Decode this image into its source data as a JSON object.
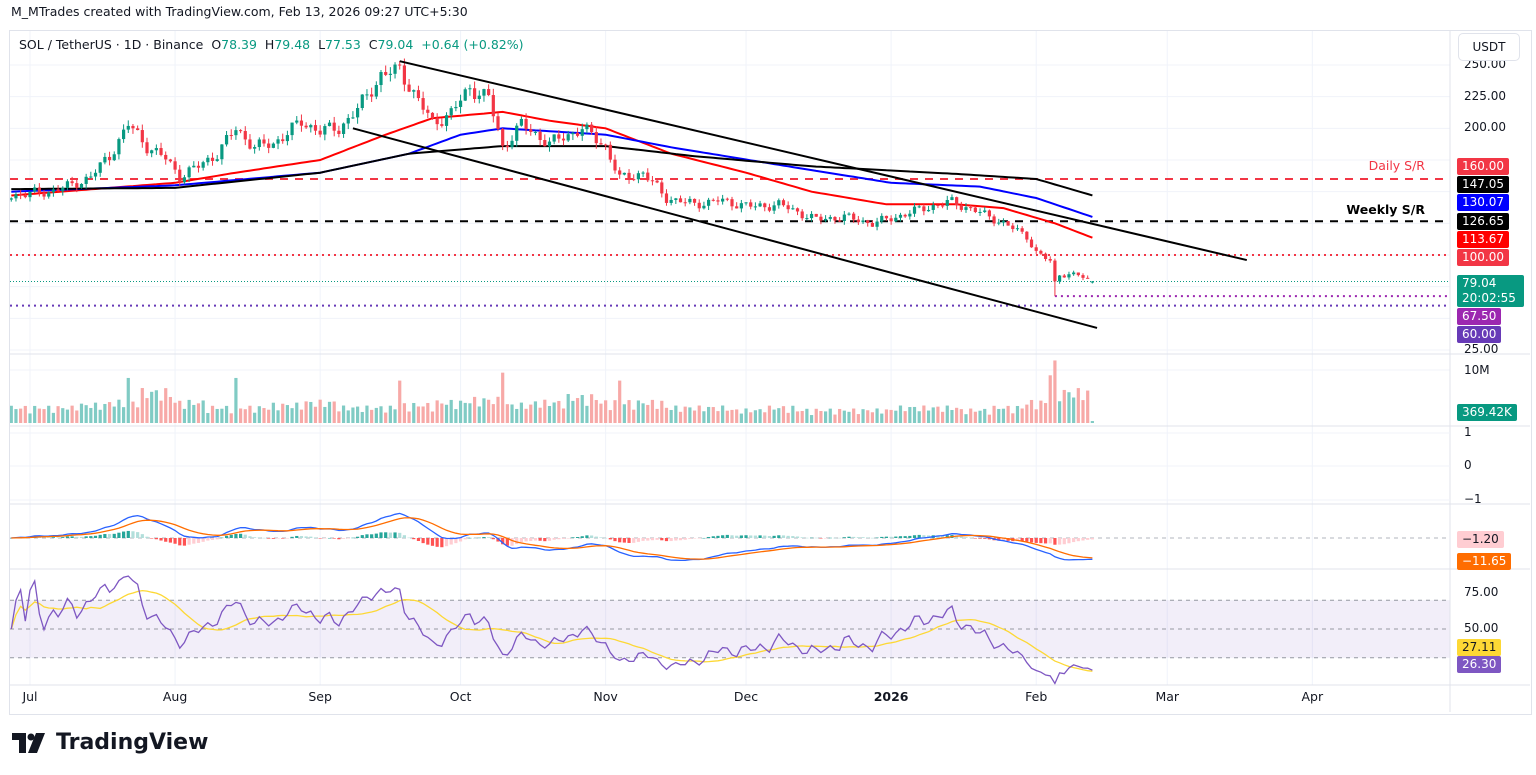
{
  "header": {
    "attribution": "M_MTrades created with TradingView.com, Feb 13, 2026 09:27 UTC+5:30"
  },
  "legend": {
    "symbol": "SOL / TetherUS · 1D · Binance",
    "o_label": "O",
    "open": "78.39",
    "h_label": "H",
    "high": "79.48",
    "l_label": "L",
    "low": "77.53",
    "c_label": "C",
    "close": "79.04",
    "change": "+0.64 (+0.82%)"
  },
  "currency_button": "USDT",
  "logo_text": "TradingView",
  "chart_data": {
    "type": "candlestick",
    "symbol": "SOL/USDT",
    "interval": "1D",
    "y_axis": {
      "ticks": [
        "250.00",
        "225.00",
        "200.00",
        "25.00"
      ],
      "range": [
        25,
        250
      ]
    },
    "x_axis": {
      "ticks": [
        {
          "label": "Jul",
          "date": "2025-07-01"
        },
        {
          "label": "Aug",
          "date": "2025-08-01"
        },
        {
          "label": "Sep",
          "date": "2025-09-01"
        },
        {
          "label": "Oct",
          "date": "2025-10-01"
        },
        {
          "label": "Nov",
          "date": "2025-11-01"
        },
        {
          "label": "Dec",
          "date": "2025-12-01"
        },
        {
          "label": "2026",
          "date": "2026-01-01",
          "bold": true
        },
        {
          "label": "Feb",
          "date": "2026-02-01"
        },
        {
          "label": "Mar",
          "date": "2026-03-01"
        },
        {
          "label": "Apr",
          "date": "2026-04-01"
        }
      ]
    },
    "approx_closes": [
      [
        "2025-06-27",
        147
      ],
      [
        "2025-07-05",
        150
      ],
      [
        "2025-07-10",
        155
      ],
      [
        "2025-07-14",
        162
      ],
      [
        "2025-07-18",
        178
      ],
      [
        "2025-07-22",
        203
      ],
      [
        "2025-07-26",
        186
      ],
      [
        "2025-07-30",
        176
      ],
      [
        "2025-08-02",
        162
      ],
      [
        "2025-08-06",
        170
      ],
      [
        "2025-08-10",
        180
      ],
      [
        "2025-08-14",
        200
      ],
      [
        "2025-08-18",
        185
      ],
      [
        "2025-08-22",
        188
      ],
      [
        "2025-08-28",
        205
      ],
      [
        "2025-09-01",
        198
      ],
      [
        "2025-09-05",
        200
      ],
      [
        "2025-09-09",
        215
      ],
      [
        "2025-09-14",
        242
      ],
      [
        "2025-09-18",
        246
      ],
      [
        "2025-09-22",
        222
      ],
      [
        "2025-09-25",
        204
      ],
      [
        "2025-09-29",
        212
      ],
      [
        "2025-10-03",
        232
      ],
      [
        "2025-10-07",
        224
      ],
      [
        "2025-10-10",
        185
      ],
      [
        "2025-10-14",
        203
      ],
      [
        "2025-10-20",
        188
      ],
      [
        "2025-10-27",
        200
      ],
      [
        "2025-11-01",
        186
      ],
      [
        "2025-11-04",
        160
      ],
      [
        "2025-11-09",
        165
      ],
      [
        "2025-11-14",
        145
      ],
      [
        "2025-11-20",
        140
      ],
      [
        "2025-11-25",
        143
      ],
      [
        "2025-12-03",
        138
      ],
      [
        "2025-12-08",
        140
      ],
      [
        "2025-12-16",
        128
      ],
      [
        "2025-12-22",
        130
      ],
      [
        "2025-12-28",
        125
      ],
      [
        "2026-01-02",
        130
      ],
      [
        "2026-01-08",
        137
      ],
      [
        "2026-01-14",
        142
      ],
      [
        "2026-01-19",
        135
      ],
      [
        "2026-01-24",
        127
      ],
      [
        "2026-01-30",
        115
      ],
      [
        "2026-02-01",
        102
      ],
      [
        "2026-02-04",
        95
      ],
      [
        "2026-02-05",
        78
      ],
      [
        "2026-02-06",
        85
      ],
      [
        "2026-02-10",
        84
      ],
      [
        "2026-02-13",
        79.04
      ]
    ],
    "last_candle": {
      "date": "2026-02-13",
      "open": 78.39,
      "high": 79.48,
      "low": 77.53,
      "close": 79.04
    },
    "swing_low": {
      "date": "2026-02-05",
      "low": 67.5
    },
    "moving_averages": [
      {
        "color": "#ff0000",
        "last": "113.67",
        "points": [
          [
            "2025-06-27",
            147
          ],
          [
            "2025-08-01",
            157
          ],
          [
            "2025-08-14",
            165
          ],
          [
            "2025-09-01",
            175
          ],
          [
            "2025-09-15",
            195
          ],
          [
            "2025-09-25",
            208
          ],
          [
            "2025-10-10",
            213
          ],
          [
            "2025-10-20",
            206
          ],
          [
            "2025-11-01",
            200
          ],
          [
            "2025-11-15",
            180
          ],
          [
            "2025-12-01",
            165
          ],
          [
            "2025-12-15",
            150
          ],
          [
            "2025-12-31",
            140
          ],
          [
            "2026-01-15",
            140
          ],
          [
            "2026-01-25",
            137
          ],
          [
            "2026-02-05",
            125
          ],
          [
            "2026-02-13",
            113.67
          ]
        ]
      },
      {
        "color": "#0000ff",
        "last": "130.07",
        "points": [
          [
            "2025-06-27",
            150
          ],
          [
            "2025-08-01",
            155
          ],
          [
            "2025-09-01",
            165
          ],
          [
            "2025-09-20",
            180
          ],
          [
            "2025-10-01",
            195
          ],
          [
            "2025-10-10",
            200
          ],
          [
            "2025-11-01",
            195
          ],
          [
            "2025-11-15",
            185
          ],
          [
            "2025-12-15",
            167
          ],
          [
            "2026-01-01",
            157
          ],
          [
            "2026-01-20",
            154
          ],
          [
            "2026-02-01",
            145
          ],
          [
            "2026-02-13",
            130.07
          ]
        ]
      },
      {
        "color": "#000000",
        "last": "147.05",
        "points": [
          [
            "2025-06-27",
            152
          ],
          [
            "2025-08-01",
            153
          ],
          [
            "2025-09-01",
            165
          ],
          [
            "2025-09-20",
            180
          ],
          [
            "2025-10-10",
            186
          ],
          [
            "2025-11-01",
            186
          ],
          [
            "2025-11-20",
            178
          ],
          [
            "2025-12-15",
            170
          ],
          [
            "2026-01-15",
            164
          ],
          [
            "2026-02-01",
            160
          ],
          [
            "2026-02-13",
            147.05
          ]
        ]
      }
    ],
    "trendlines": [
      {
        "from": [
          "2025-09-18",
          253
        ],
        "to": [
          "2026-03-18",
          96
        ]
      },
      {
        "from": [
          "2025-09-08",
          200
        ],
        "to": [
          "2026-02-14",
          42.4
        ]
      }
    ],
    "levels": [
      {
        "price": 160,
        "label": "Daily S/R",
        "tag": "160.00",
        "color": "#f23645",
        "style": "dashed"
      },
      {
        "price": 126.65,
        "label": "Weekly S/R",
        "tag": "126.65",
        "color": "#000000",
        "style": "dashed"
      },
      {
        "price": 100,
        "tag": "100.00",
        "color": "#f23645",
        "style": "dotted"
      },
      {
        "price": 67.5,
        "tag": "67.50",
        "color": "#9c27b0",
        "style": "dotted",
        "from": "2026-02-05"
      },
      {
        "price": 60,
        "tag": "60.00",
        "color": "#673ab7",
        "style": "dotted"
      }
    ],
    "current_price": {
      "tag": "79.04",
      "countdown": "20:02:55",
      "color": "#089981"
    },
    "volume": {
      "axis_tick": "10M",
      "last": "369.42K",
      "approx_weekly_millions": [
        3,
        3,
        3.5,
        4,
        6,
        4,
        3,
        3,
        3.5,
        4,
        3,
        3,
        3.5,
        4,
        4.5,
        3.5,
        4,
        5,
        4,
        4,
        3,
        3,
        2.5,
        3,
        2.5,
        2.5,
        2.5,
        3,
        3,
        2.5,
        3,
        4,
        6,
        3.5
      ],
      "spikes": [
        [
          "2025-07-22",
          8.5
        ],
        [
          "2025-08-14",
          8.5
        ],
        [
          "2025-09-18",
          8
        ],
        [
          "2025-10-10",
          9.5
        ],
        [
          "2025-11-04",
          8
        ],
        [
          "2026-02-04",
          9
        ],
        [
          "2026-02-05",
          11.8
        ]
      ]
    },
    "empty_pane": {
      "ticks": [
        "1",
        "0",
        "−1"
      ]
    },
    "macd": {
      "hist_last": "−1.20",
      "signal_last": "−11.65",
      "hist_color": "#ffcdd2",
      "macd_color": "#2962ff",
      "signal_color": "#ff6d00"
    },
    "rsi": {
      "ticks": [
        "75.00",
        "50.00"
      ],
      "bands": [
        70,
        50,
        30
      ],
      "ma_last": "27.11",
      "rsi_last": "26.30",
      "line_color": "#7e57c2",
      "ma_color": "#fdd835"
    }
  }
}
